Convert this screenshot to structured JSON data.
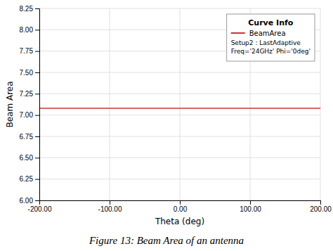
{
  "chart_data": {
    "type": "line",
    "title": "Figure 13: Beam Area of an antenna",
    "x_label": "Theta (deg)",
    "y_label": "Beam Area",
    "x": [
      -200,
      200
    ],
    "series": [
      {
        "name": "BeamArea",
        "color": "#cc3333",
        "values": [
          7.08,
          7.08
        ]
      }
    ],
    "xlim": [
      -200,
      200
    ],
    "ylim": [
      6.0,
      8.25
    ],
    "xticks": [
      {
        "value": -200,
        "label": "-200.00"
      },
      {
        "value": -100,
        "label": "-100.00"
      },
      {
        "value": 0,
        "label": "0.00"
      },
      {
        "value": 100,
        "label": "100.00"
      },
      {
        "value": 200,
        "label": "200.00"
      }
    ],
    "yticks": [
      {
        "value": 6,
        "label": "6.00"
      },
      6.25,
      {
        "value": 6.5,
        "label": "6.50"
      },
      6.75,
      {
        "value": 7,
        "label": "7.00"
      },
      7.25,
      {
        "value": 7.5,
        "label": "7.50"
      },
      7.75,
      {
        "value": 8,
        "label": "8.00"
      },
      8.25
    ],
    "grid": true,
    "legend": "upper right",
    "legend_title": "Curve Info",
    "annotations": [
      "Setup2 : LastAdaptive",
      "Freq='24GHz' Phi='0deg'"
    ]
  }
}
